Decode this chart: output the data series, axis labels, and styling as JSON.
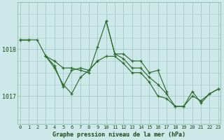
{
  "title": "Graphe pression niveau de la mer (hPa)",
  "background_color": "#cce8e8",
  "grid_color": "#aacccc",
  "line_color": "#2d6a2d",
  "ylabel_ticks": [
    1017,
    1018
  ],
  "xlim": [
    -0.3,
    23.3
  ],
  "ylim": [
    1016.4,
    1019.0
  ],
  "xticks": [
    0,
    1,
    2,
    3,
    4,
    5,
    6,
    7,
    8,
    9,
    10,
    11,
    12,
    13,
    14,
    15,
    16,
    17,
    18,
    19,
    20,
    21,
    22,
    23
  ],
  "series": [
    [
      1018.2,
      1018.2,
      null,
      null,
      null,
      null,
      null,
      null,
      null,
      null,
      null,
      null,
      null,
      null,
      null,
      null,
      null,
      null,
      null,
      null,
      null,
      null,
      null,
      null
    ],
    [
      1018.2,
      1018.2,
      1018.2,
      1017.85,
      1017.75,
      1017.6,
      1017.6,
      1017.55,
      1017.5,
      1018.05,
      1018.6,
      1017.9,
      1017.8,
      1017.6,
      1017.6,
      1017.4,
      1017.25,
      1017.05,
      1016.78,
      1016.78,
      1017.0,
      1016.9,
      1017.05,
      1017.15
    ],
    [
      null,
      null,
      null,
      1017.85,
      1017.6,
      1017.25,
      1017.05,
      1017.4,
      1017.55,
      1017.75,
      null,
      null,
      null,
      null,
      null,
      null,
      null,
      null,
      null,
      null,
      null,
      null,
      null,
      null
    ],
    [
      null,
      null,
      null,
      1017.85,
      1017.65,
      1017.2,
      1017.55,
      1017.6,
      1017.55,
      1017.75,
      1017.85,
      1017.85,
      1017.7,
      1017.5,
      1017.5,
      1017.3,
      1017.0,
      1016.95,
      1016.78,
      1016.78,
      1017.1,
      1016.85,
      1017.05,
      1017.15
    ],
    [
      null,
      null,
      null,
      null,
      null,
      null,
      null,
      null,
      null,
      null,
      1018.6,
      1017.9,
      1017.9,
      1017.75,
      1017.75,
      1017.5,
      1017.55,
      1017.1,
      null,
      null,
      null,
      null,
      null,
      null
    ]
  ]
}
